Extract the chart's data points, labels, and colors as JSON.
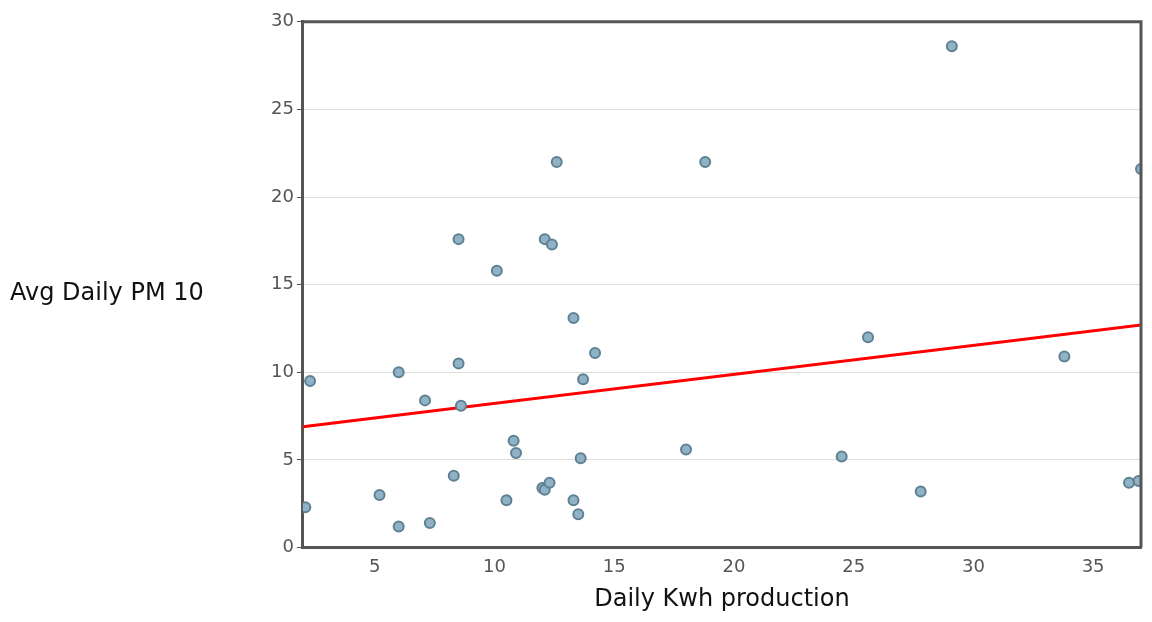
{
  "chart_data": {
    "type": "scatter",
    "xlabel": "Daily Kwh production",
    "ylabel": "Avg Daily PM 10",
    "xlim": [
      2,
      37
    ],
    "ylim": [
      0,
      30
    ],
    "xticks": [
      5,
      10,
      15,
      20,
      25,
      30,
      35
    ],
    "yticks": [
      0,
      5,
      10,
      15,
      20,
      25,
      30
    ],
    "grid": "y",
    "legend": false,
    "marker": "circle",
    "series": [
      {
        "color": "#8fb2c6",
        "x": [
          2.1,
          2.3,
          5.2,
          6.0,
          6.0,
          7.1,
          7.3,
          8.3,
          8.5,
          8.5,
          8.6,
          10.1,
          10.5,
          10.8,
          10.9,
          12.0,
          12.1,
          12.1,
          12.3,
          12.4,
          12.6,
          13.3,
          13.3,
          13.5,
          13.6,
          13.7,
          14.2,
          18.0,
          18.8,
          24.5,
          25.6,
          27.8,
          29.1,
          33.8,
          36.5,
          36.9,
          37.0
        ],
        "values": [
          2.3,
          9.5,
          3.0,
          1.2,
          10.0,
          8.4,
          1.4,
          4.1,
          17.6,
          10.5,
          8.1,
          15.8,
          2.7,
          6.1,
          5.4,
          3.4,
          3.3,
          17.6,
          3.7,
          17.3,
          22.0,
          13.1,
          2.7,
          1.9,
          5.1,
          9.6,
          11.1,
          5.6,
          22.0,
          5.2,
          12.0,
          3.2,
          28.6,
          10.9,
          3.7,
          3.8,
          21.6
        ]
      },
      {
        "type": "line",
        "color": "#ff0000",
        "x": [
          2,
          37
        ],
        "values": [
          6.9,
          12.7
        ],
        "marker": "none",
        "line_style": "solid"
      }
    ]
  }
}
